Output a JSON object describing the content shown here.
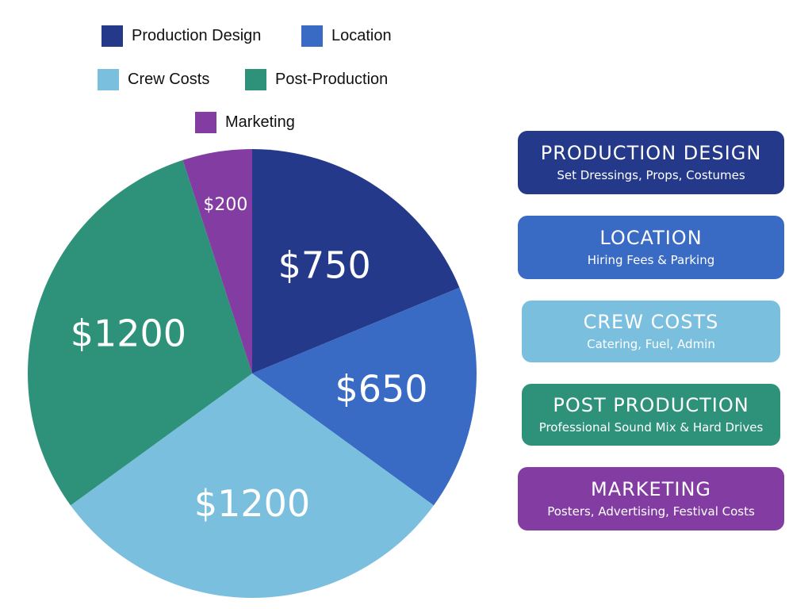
{
  "chart_data": {
    "type": "pie",
    "slices": [
      {
        "name": "Production Design",
        "value": 750,
        "label": "$750",
        "color": "#24398a"
      },
      {
        "name": "Location",
        "value": 650,
        "label": "$650",
        "color": "#3a6bc4"
      },
      {
        "name": "Crew Costs",
        "value": 1200,
        "label": "$1200",
        "color": "#7bbfdf"
      },
      {
        "name": "Post-Production",
        "value": 1200,
        "label": "$1200",
        "color": "#2e927b"
      },
      {
        "name": "Marketing",
        "value": 200,
        "label": "$200",
        "color": "#833da2"
      }
    ],
    "legend": [
      "Production Design",
      "Location",
      "Crew Costs",
      "Post-Production",
      "Marketing"
    ],
    "legend_placement": "top-left"
  },
  "categories": [
    {
      "title": "PRODUCTION DESIGN",
      "subtitle": "Set Dressings, Props, Costumes",
      "color": "#24398a"
    },
    {
      "title": "LOCATION",
      "subtitle": "Hiring Fees & Parking",
      "color": "#3a6bc4"
    },
    {
      "title": "CREW COSTS",
      "subtitle": "Catering, Fuel, Admin",
      "color": "#7bbfdf"
    },
    {
      "title": "POST PRODUCTION",
      "subtitle": "Professional Sound Mix & Hard Drives",
      "color": "#2e927b"
    },
    {
      "title": "MARKETING",
      "subtitle": "Posters, Advertising, Festival Costs",
      "color": "#833da2"
    }
  ]
}
